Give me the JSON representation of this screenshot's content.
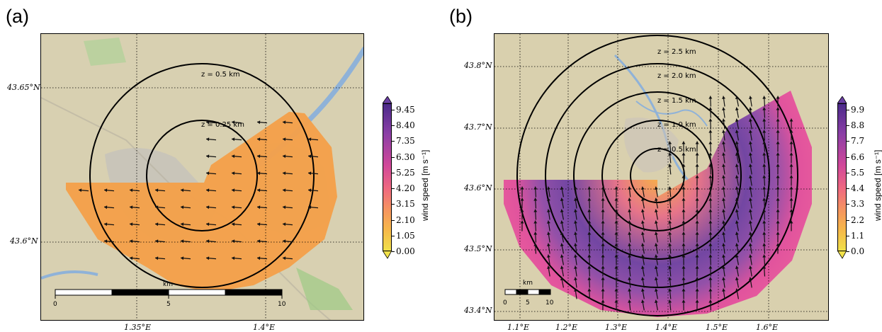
{
  "panels": [
    {
      "id": "a",
      "label": "(a)",
      "lat_labels": [
        "43.65°N",
        "43.6°N"
      ],
      "lon_labels": [
        "1.35°E",
        "1.4°E"
      ],
      "ring_labels": [
        "z = 0.5 km",
        "z = 0.25 km"
      ],
      "scale_unit": "km",
      "scale_ticks": [
        "0",
        "5",
        "10"
      ],
      "colorbar": {
        "title": "wind speed [m s⁻¹]",
        "ticks": [
          "9.45",
          "8.40",
          "7.35",
          "6.30",
          "5.25",
          "4.20",
          "3.15",
          "2.10",
          "1.05",
          "0.00"
        ]
      }
    },
    {
      "id": "b",
      "label": "(b)",
      "lat_labels": [
        "43.8°N",
        "43.7°N",
        "43.6°N",
        "43.5°N",
        "43.4°N"
      ],
      "lon_labels": [
        "1.1°E",
        "1.2°E",
        "1.3°E",
        "1.4°E",
        "1.5°E",
        "1.6°E"
      ],
      "ring_labels": [
        "z = 2.5 km",
        "z = 2.0 km",
        "z = 1.5 km",
        "z = 1.0 km",
        "z = 0.5 km"
      ],
      "scale_unit": "km",
      "scale_ticks": [
        "0",
        "5",
        "10"
      ],
      "colorbar": {
        "title": "wind speed [m s⁻¹]",
        "ticks": [
          "9.9",
          "8.8",
          "7.7",
          "6.6",
          "5.5",
          "4.4",
          "3.3",
          "2.2",
          "1.1",
          "0.0"
        ]
      }
    }
  ],
  "colors": {
    "map_base": "#d9d1b4",
    "urban": "#c9c4bd",
    "river": "#8fb2d8",
    "wind_a": "#f4a04a",
    "wind_b_high": "#e24d9c",
    "wind_b_peak": "#6a3fa3",
    "wind_b_low": "#f9b043"
  },
  "icons": [
    "wind-arrow-icon",
    "colorbar-max-arrow-icon",
    "colorbar-min-arrow-icon"
  ]
}
